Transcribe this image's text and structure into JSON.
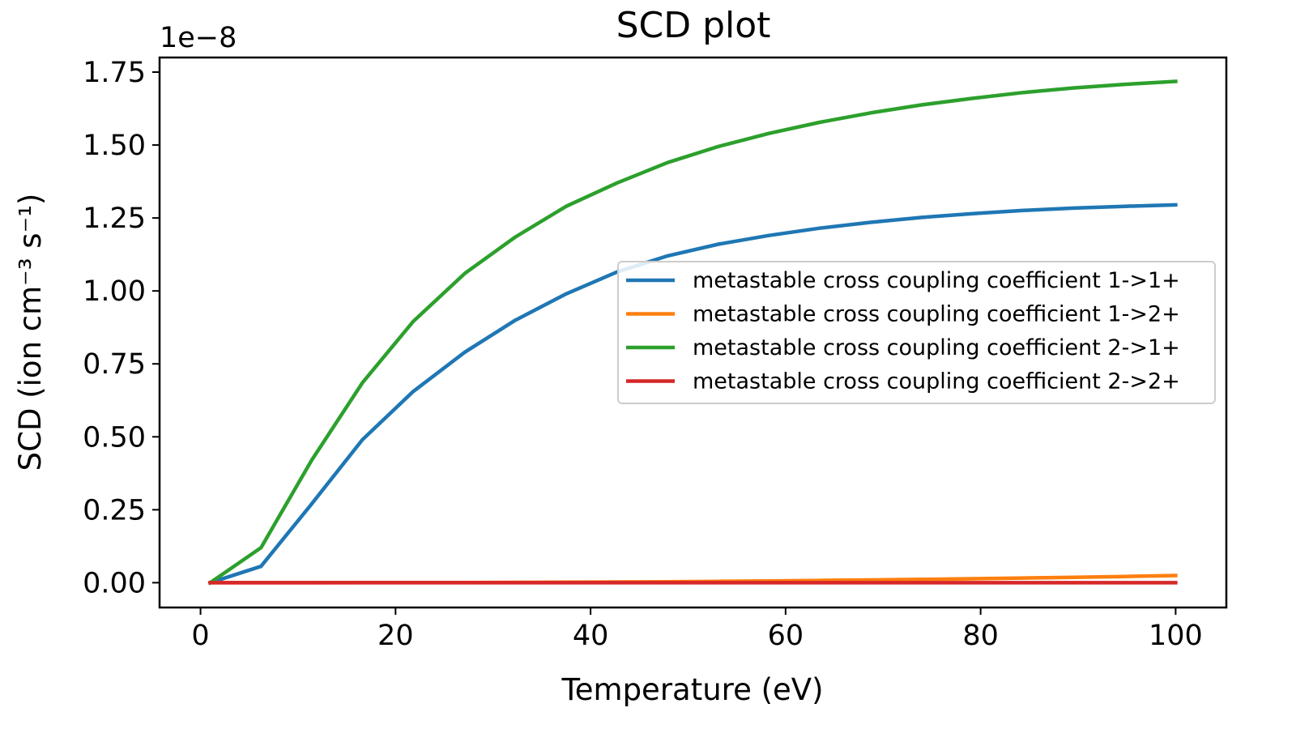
{
  "chart_data": {
    "type": "line",
    "title": "SCD plot",
    "xlabel": "Temperature (eV)",
    "ylabel": "SCD (ion cm⁻³ s⁻¹)",
    "offset_text": "1e−8",
    "xlim": [
      -4.2,
      105.2
    ],
    "ylim": [
      -0.085,
      1.8
    ],
    "xticks": [
      0,
      20,
      40,
      60,
      80,
      100
    ],
    "xtick_labels": [
      "0",
      "20",
      "40",
      "60",
      "80",
      "100"
    ],
    "yticks": [
      0.0,
      0.25,
      0.5,
      0.75,
      1.0,
      1.25,
      1.5,
      1.75
    ],
    "ytick_labels": [
      "0.00",
      "0.25",
      "0.50",
      "0.75",
      "1.00",
      "1.25",
      "1.50",
      "1.75"
    ],
    "grid": false,
    "legend_position": "center-right",
    "x": [
      1,
      6.2,
      11.4,
      16.6,
      21.8,
      27.1,
      32.3,
      37.5,
      42.7,
      47.9,
      53.1,
      58.3,
      63.5,
      68.7,
      74.0,
      79.2,
      84.4,
      89.6,
      94.8,
      100
    ],
    "series": [
      {
        "name": "metastable cross coupling coefficient 1->1+",
        "color": "#1f77b4",
        "values": [
          0.0,
          0.056,
          0.27,
          0.49,
          0.655,
          0.79,
          0.9,
          0.99,
          1.065,
          1.12,
          1.16,
          1.19,
          1.215,
          1.235,
          1.252,
          1.265,
          1.276,
          1.284,
          1.29,
          1.295
        ]
      },
      {
        "name": "metastable cross coupling coefficient 1->2+",
        "color": "#ff7f0e",
        "values": [
          0.0,
          0.0,
          0.0,
          0.0001,
          0.0003,
          0.0006,
          0.001,
          0.0016,
          0.0024,
          0.0034,
          0.0046,
          0.006,
          0.0076,
          0.0094,
          0.0114,
          0.0136,
          0.016,
          0.0186,
          0.0214,
          0.0244
        ]
      },
      {
        "name": "metastable cross coupling coefficient 2->1+",
        "color": "#2ca02c",
        "values": [
          0.0,
          0.12,
          0.42,
          0.685,
          0.895,
          1.06,
          1.185,
          1.29,
          1.37,
          1.44,
          1.495,
          1.54,
          1.578,
          1.61,
          1.638,
          1.66,
          1.68,
          1.696,
          1.708,
          1.718
        ]
      },
      {
        "name": "metastable cross coupling coefficient 2->2+",
        "color": "#d62728",
        "values": [
          0.0,
          0.0,
          0.0,
          0.0,
          0.0,
          0.0,
          0.0,
          0.0,
          0.0,
          0.0,
          0.0,
          0.0,
          0.0,
          0.0,
          0.0,
          0.0,
          0.0,
          0.0,
          0.0,
          0.0
        ]
      }
    ]
  }
}
